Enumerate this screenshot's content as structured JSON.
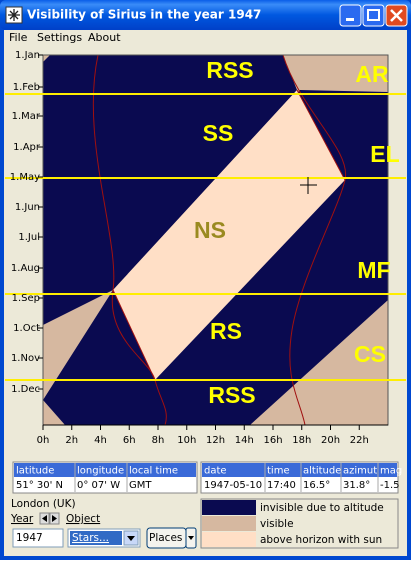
{
  "window": {
    "title": "Visibility of Sirius in the year 1947"
  },
  "menu": [
    "File",
    "Settings",
    "About"
  ],
  "plot": {
    "y_labels": [
      "1.Jan",
      "1.Feb",
      "1.Mar",
      "1.Apr",
      "1.May",
      "1.Jun",
      "1.Jul",
      "1.Aug",
      "1.Sep",
      "1.Oct",
      "1.Nov",
      "1.Dec"
    ],
    "x_labels": [
      "0h",
      "2h",
      "4h",
      "6h",
      "8h",
      "10h",
      "12h",
      "14h",
      "16h",
      "18h",
      "20h",
      "22h"
    ],
    "regions": [
      "RSS",
      "AR",
      "SS",
      "EL",
      "NS",
      "MF",
      "RS",
      "CS",
      "RSS"
    ]
  },
  "location_table": {
    "headers": [
      "latitude",
      "longitude",
      "local time"
    ],
    "values": [
      "51° 30'  N",
      "0° 07'  W",
      "GMT"
    ]
  },
  "object_table": {
    "headers": [
      "date",
      "time",
      "altitude",
      "azimut",
      "mag"
    ],
    "values": [
      "1947-05-10",
      "17:40",
      "16.5°",
      "31.8°",
      "-1.5"
    ]
  },
  "place": "London (UK)",
  "controls": {
    "year_label": "Year",
    "object_label": "Object",
    "year": "1947",
    "object": "Stars...",
    "places": "Places"
  },
  "legend": [
    "invisible due to altitude",
    "visible",
    "above horizon with sun"
  ]
}
